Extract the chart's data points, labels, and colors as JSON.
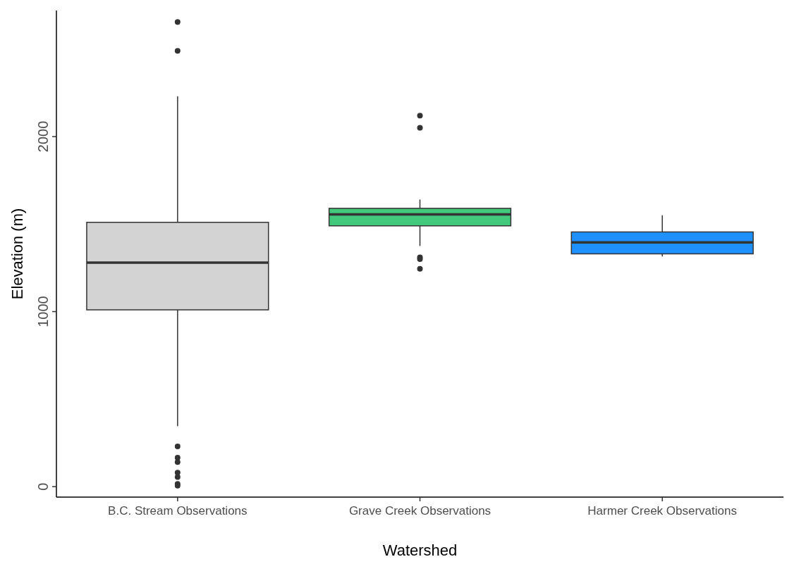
{
  "chart_data": {
    "type": "box",
    "xlabel": "Watershed",
    "ylabel": "Elevation (m)",
    "categories": [
      "B.C. Stream Observations",
      "Grave Creek Observations",
      "Harmer Creek Observations"
    ],
    "colors": [
      "#d3d3d3",
      "#43c97b",
      "#1e90ff"
    ],
    "boxes": [
      {
        "low": 345,
        "q1": 1010,
        "median": 1280,
        "q3": 1510,
        "high": 2230,
        "outliers": [
          2655,
          2490,
          230,
          165,
          140,
          80,
          55,
          15,
          5
        ]
      },
      {
        "low": 1375,
        "q1": 1490,
        "median": 1555,
        "q3": 1590,
        "high": 1640,
        "outliers": [
          2120,
          2050,
          1310,
          1300,
          1245
        ]
      },
      {
        "low": 1315,
        "q1": 1330,
        "median": 1395,
        "q3": 1455,
        "high": 1550
      }
    ],
    "ylim": [
      -60,
      2720
    ],
    "yticks": [
      0,
      1000,
      2000
    ],
    "grid": false
  }
}
